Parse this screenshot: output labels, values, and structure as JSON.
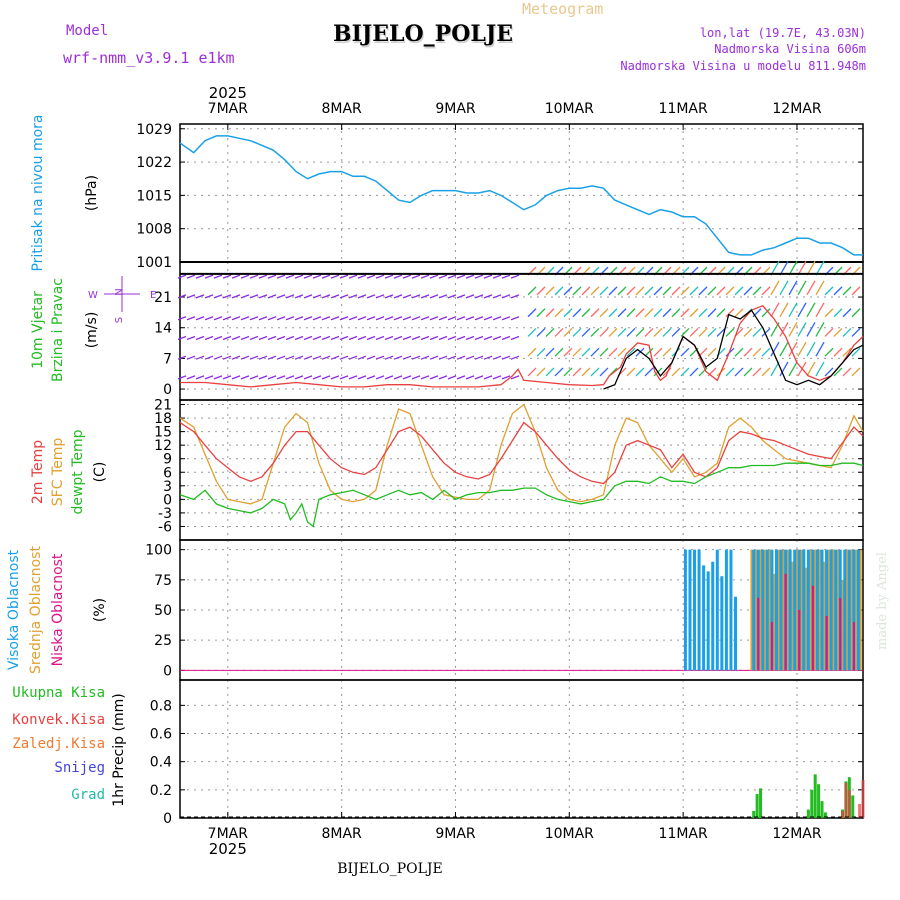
{
  "header": {
    "model_label": "Model",
    "model_name": "wrf-nmm_v3.9.1 e1km",
    "title": "BIJELO_POLJE",
    "subtitle": "Meteogram",
    "lonlat": "lon,lat (19.7E, 43.03N)",
    "elevation": "Nadmorska Visina 606m",
    "model_elevation": "Nadmorska Visina u modelu 811.948m",
    "footer_station": "BIJELO_POLJE",
    "credit": "made by Angel"
  },
  "time_axis": {
    "year": "2025",
    "labels": [
      "7MAR",
      "8MAR",
      "9MAR",
      "10MAR",
      "11MAR",
      "12MAR"
    ],
    "range_days": [
      6.58,
      12.58
    ]
  },
  "colors": {
    "pressure": "#1aa0e8",
    "wind_arrows_1": "#8a2be2",
    "wind_speed": "#e84040",
    "wind_gust": "#000000",
    "temp_2m": "#e84040",
    "temp_sfc": "#e0a030",
    "dewpoint": "#22bb22",
    "cloud_high": "#1aa0e8",
    "cloud_mid": "#e0a030",
    "cloud_low": "#dd1188",
    "precip_total": "#22bb22",
    "precip_conv": "#e84040",
    "precip_frozen": "#f07a30",
    "precip_snow": "#4444dd",
    "precip_grad": "#22bbaa"
  },
  "chart_data": [
    {
      "type": "line",
      "panel": "pressure",
      "ylabels": [
        "Pritisak na nivou mora",
        "(hPa)"
      ],
      "yticks": [
        1001,
        1008,
        1015,
        1022,
        1029
      ],
      "ylim": [
        1001,
        1030
      ],
      "series": [
        {
          "x": [
            6.58,
            6.7,
            6.8,
            6.9,
            7.0,
            7.1,
            7.2,
            7.3,
            7.4,
            7.5,
            7.6,
            7.7,
            7.8,
            7.9,
            8.0,
            8.1,
            8.2,
            8.3,
            8.4,
            8.5,
            8.6,
            8.7,
            8.8,
            8.9,
            9.0,
            9.1,
            9.2,
            9.3,
            9.4,
            9.5,
            9.6,
            9.7,
            9.8,
            9.9,
            10.0,
            10.1,
            10.2,
            10.3,
            10.4,
            10.5,
            10.6,
            10.7,
            10.8,
            10.9,
            11.0,
            11.1,
            11.2,
            11.3,
            11.4,
            11.5,
            11.6,
            11.7,
            11.8,
            11.9,
            12.0,
            12.1,
            12.2,
            12.3,
            12.4,
            12.5,
            12.58
          ],
          "values": [
            1026,
            1024,
            1026.5,
            1027.5,
            1027.5,
            1027,
            1026.5,
            1025.5,
            1024.5,
            1022.5,
            1020,
            1018.5,
            1019.5,
            1020,
            1020,
            1019,
            1019,
            1018,
            1016,
            1014,
            1013.5,
            1015,
            1016,
            1016,
            1016,
            1015.5,
            1015.5,
            1016,
            1015,
            1013.5,
            1012,
            1013,
            1015,
            1016,
            1016.5,
            1016.5,
            1017,
            1016.5,
            1014,
            1013,
            1012,
            1011,
            1012,
            1011.5,
            1010.5,
            1010.5,
            1009,
            1006,
            1003,
            1002.5,
            1002.5,
            1003.5,
            1004,
            1005,
            1006,
            1006,
            1005,
            1005,
            1004,
            1002.5,
            1002.5
          ]
        }
      ]
    },
    {
      "type": "line",
      "panel": "wind",
      "ylabels": [
        "10m Vjetar",
        "Brzina i Pravac",
        "(m/s)"
      ],
      "direction_legend": [
        "N",
        "W",
        "S",
        "E"
      ],
      "yticks": [
        0,
        7,
        14,
        21
      ],
      "ylim": [
        -2.5,
        29
      ],
      "series": [
        {
          "name": "speed",
          "x": [
            6.58,
            6.8,
            7.0,
            7.2,
            7.4,
            7.6,
            7.8,
            8.0,
            8.2,
            8.4,
            8.6,
            8.8,
            9.0,
            9.2,
            9.4,
            9.5,
            9.55,
            9.6,
            9.8,
            10.0,
            10.2,
            10.3,
            10.35,
            10.45,
            10.5,
            10.6,
            10.7,
            10.75,
            10.8,
            10.85,
            10.9,
            11.0,
            11.1,
            11.2,
            11.3,
            11.4,
            11.5,
            11.6,
            11.7,
            11.8,
            11.9,
            12.0,
            12.1,
            12.2,
            12.3,
            12.4,
            12.5,
            12.58
          ],
          "values": [
            1.5,
            1.5,
            1,
            0.5,
            1,
            1.5,
            1,
            0.5,
            0.5,
            1,
            1,
            0.5,
            0.5,
            0.5,
            1,
            3,
            4.5,
            2,
            1.5,
            1,
            0.8,
            1,
            3,
            5,
            8,
            10.5,
            10,
            4,
            2,
            3,
            6,
            12,
            10,
            4,
            2,
            8,
            15,
            18,
            19,
            16,
            12,
            6,
            3,
            2,
            3,
            6,
            10,
            12
          ]
        },
        {
          "name": "gust",
          "x": [
            10.3,
            10.4,
            10.5,
            10.6,
            10.7,
            10.8,
            10.9,
            11.0,
            11.1,
            11.2,
            11.3,
            11.4,
            11.5,
            11.6,
            11.7,
            11.8,
            11.9,
            12.0,
            12.1,
            12.2,
            12.3,
            12.4,
            12.5,
            12.58
          ],
          "values": [
            0,
            1,
            7,
            9,
            7,
            3,
            6,
            12,
            10,
            5,
            7,
            17,
            16,
            18,
            14,
            8,
            2,
            1,
            2,
            1,
            3,
            6,
            9,
            10
          ]
        }
      ]
    },
    {
      "type": "line",
      "panel": "temperature",
      "ylabels": [
        "2m Temp",
        "SFC Temp",
        "dewpt Temp",
        "(C)"
      ],
      "yticks": [
        -6,
        -3,
        0,
        3,
        6,
        9,
        12,
        15,
        18,
        21
      ],
      "ylim": [
        -9,
        22
      ],
      "series": [
        {
          "name": "2m Temp",
          "x": [
            6.58,
            6.7,
            6.8,
            6.9,
            7.0,
            7.1,
            7.2,
            7.3,
            7.4,
            7.5,
            7.6,
            7.7,
            7.8,
            7.9,
            8.0,
            8.1,
            8.2,
            8.3,
            8.4,
            8.5,
            8.6,
            8.7,
            8.8,
            8.9,
            9.0,
            9.1,
            9.2,
            9.3,
            9.4,
            9.5,
            9.6,
            9.7,
            9.8,
            9.9,
            10.0,
            10.1,
            10.2,
            10.3,
            10.4,
            10.5,
            10.6,
            10.7,
            10.8,
            10.9,
            11.0,
            11.1,
            11.2,
            11.3,
            11.4,
            11.5,
            11.6,
            11.7,
            11.8,
            11.9,
            12.0,
            12.1,
            12.2,
            12.3,
            12.4,
            12.5,
            12.58
          ],
          "values": [
            17,
            15,
            12,
            9,
            7,
            5,
            4,
            5,
            8,
            12,
            15,
            15,
            12,
            9,
            7,
            6,
            5.5,
            7,
            11,
            15,
            16,
            14,
            11,
            8,
            6,
            5,
            4.5,
            5.5,
            9,
            13,
            17,
            15,
            12,
            9,
            6.5,
            5,
            4,
            3.5,
            6,
            12,
            13,
            12,
            11,
            7,
            10,
            6,
            5,
            7,
            13,
            15,
            14.5,
            13.5,
            13,
            12,
            11,
            10,
            9.5,
            9,
            12.5,
            16,
            14
          ]
        },
        {
          "name": "SFC Temp",
          "x": [
            6.58,
            6.7,
            6.8,
            6.9,
            7.0,
            7.1,
            7.2,
            7.3,
            7.4,
            7.5,
            7.6,
            7.7,
            7.8,
            7.9,
            8.0,
            8.1,
            8.2,
            8.3,
            8.4,
            8.5,
            8.6,
            8.7,
            8.8,
            8.9,
            9.0,
            9.1,
            9.2,
            9.3,
            9.4,
            9.5,
            9.6,
            9.7,
            9.8,
            9.9,
            10.0,
            10.1,
            10.2,
            10.3,
            10.4,
            10.5,
            10.6,
            10.7,
            10.8,
            10.9,
            11.0,
            11.1,
            11.2,
            11.3,
            11.4,
            11.5,
            11.6,
            11.7,
            11.8,
            11.9,
            12.0,
            12.1,
            12.2,
            12.3,
            12.4,
            12.5,
            12.58
          ],
          "values": [
            18,
            16,
            10,
            4,
            0,
            -0.5,
            -1,
            0,
            8,
            16,
            19,
            17,
            8,
            2,
            0,
            -0.5,
            0,
            2,
            12,
            20,
            19,
            12,
            5,
            1,
            0.5,
            0,
            0,
            2,
            12,
            19,
            21,
            15,
            7,
            2,
            0,
            -0.5,
            0,
            1,
            12,
            18,
            17,
            12,
            9,
            6,
            9,
            5,
            6,
            8,
            16,
            18,
            16,
            13,
            11,
            9,
            8.5,
            8,
            7.5,
            7,
            12,
            18.5,
            15
          ]
        },
        {
          "name": "dewpt Temp",
          "x": [
            6.58,
            6.7,
            6.8,
            6.9,
            7.0,
            7.1,
            7.2,
            7.3,
            7.4,
            7.5,
            7.55,
            7.6,
            7.65,
            7.7,
            7.75,
            7.8,
            7.9,
            8.0,
            8.1,
            8.2,
            8.3,
            8.4,
            8.5,
            8.6,
            8.7,
            8.8,
            8.9,
            9.0,
            9.1,
            9.2,
            9.3,
            9.4,
            9.5,
            9.6,
            9.7,
            9.8,
            9.9,
            10.0,
            10.1,
            10.2,
            10.3,
            10.4,
            10.5,
            10.6,
            10.7,
            10.8,
            10.9,
            11.0,
            11.1,
            11.2,
            11.3,
            11.4,
            11.5,
            11.6,
            11.7,
            11.8,
            11.9,
            12.0,
            12.1,
            12.2,
            12.3,
            12.4,
            12.5,
            12.58
          ],
          "values": [
            1,
            0,
            2,
            -1,
            -2,
            -2.5,
            -3,
            -2,
            0,
            -1,
            -4.5,
            -3,
            -1,
            -5,
            -6,
            0,
            1,
            1.5,
            2,
            1,
            0,
            1,
            2,
            1,
            1.5,
            0,
            2,
            0,
            1,
            1.5,
            1.5,
            2,
            2,
            2.5,
            2.5,
            1,
            0,
            -0.5,
            -1,
            -0.5,
            0,
            3,
            4,
            4,
            3.5,
            5,
            4,
            4,
            3.5,
            5,
            6,
            7,
            7,
            7.5,
            7.5,
            7.5,
            8,
            8,
            8,
            7.5,
            7.5,
            8,
            8,
            7.5
          ]
        }
      ]
    },
    {
      "type": "bar",
      "panel": "cloud",
      "ylabels": [
        "Visoka Oblacnost",
        "Srednja Oblacnost",
        "Niska Oblacnost",
        "(%)"
      ],
      "yticks": [
        0,
        25,
        50,
        75,
        100
      ],
      "ylim": [
        -8,
        108
      ],
      "series": [
        {
          "name": "Visoka Oblacnost",
          "x": [
            11.02,
            11.06,
            11.1,
            11.14,
            11.18,
            11.22,
            11.26,
            11.3,
            11.34,
            11.38,
            11.42,
            11.46,
            11.62,
            11.66,
            11.7,
            11.74,
            11.78,
            11.82,
            11.86,
            11.9,
            11.94,
            11.98,
            12.02,
            12.06,
            12.1,
            12.14,
            12.18,
            12.22,
            12.26,
            12.3,
            12.34,
            12.38,
            12.42,
            12.46,
            12.5,
            12.54
          ],
          "values": [
            100,
            100,
            100,
            100,
            87,
            82,
            90,
            100,
            78,
            100,
            100,
            61,
            100,
            100,
            100,
            100,
            100,
            100,
            100,
            100,
            100,
            100,
            100,
            100,
            100,
            100,
            100,
            100,
            100,
            100,
            100,
            100,
            100,
            100,
            100,
            100
          ]
        },
        {
          "name": "Srednja Oblacnost",
          "x": [
            11.6,
            11.64,
            11.68,
            11.72,
            11.76,
            11.8,
            11.84,
            11.88,
            11.92,
            11.96,
            12.0,
            12.04,
            12.08,
            12.12,
            12.16,
            12.2,
            12.24,
            12.28,
            12.32,
            12.36,
            12.4,
            12.44,
            12.48,
            12.52,
            12.56
          ],
          "values": [
            100,
            100,
            100,
            100,
            100,
            80,
            100,
            100,
            100,
            90,
            100,
            100,
            85,
            100,
            100,
            100,
            90,
            100,
            100,
            100,
            75,
            100,
            100,
            100,
            100
          ]
        },
        {
          "name": "Niska Oblacnost",
          "x": [
            11.66,
            11.78,
            11.9,
            12.02,
            12.14,
            12.26,
            12.38,
            12.5
          ],
          "values": [
            60,
            40,
            80,
            50,
            70,
            45,
            60,
            40
          ]
        }
      ]
    },
    {
      "type": "bar",
      "panel": "precip",
      "ylabels": [
        "Ukupna Kisa",
        "Konvek.Kisa",
        "Zaledj.Kisa",
        "Snijeg",
        "Grad",
        "1hr Precip (mm)"
      ],
      "yticks": [
        0,
        0.2,
        0.4,
        0.6,
        0.8
      ],
      "ylim": [
        0,
        0.98
      ],
      "series": [
        {
          "name": "Ukupna Kisa",
          "x": [
            11.62,
            11.65,
            11.68,
            12.1,
            12.13,
            12.16,
            12.19,
            12.22,
            12.25,
            12.4,
            12.43,
            12.46,
            12.49
          ],
          "values": [
            0.05,
            0.17,
            0.21,
            0.06,
            0.2,
            0.31,
            0.24,
            0.12,
            0.04,
            0.06,
            0.26,
            0.29,
            0.16
          ]
        },
        {
          "name": "Konvek.Kisa",
          "x": [
            12.4,
            12.43,
            12.46,
            12.55,
            12.58
          ],
          "values": [
            0.05,
            0.25,
            0.2,
            0.1,
            0.27
          ]
        }
      ]
    }
  ]
}
